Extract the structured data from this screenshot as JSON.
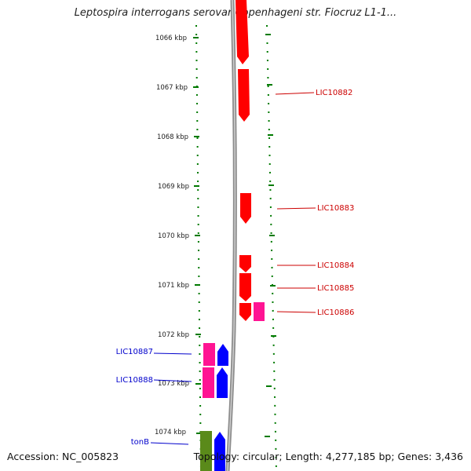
{
  "title": "Leptospira interrogans serovar Copenhageni str. Fiocruz L1-1...",
  "footer": {
    "accession": "Accession: NC_005823",
    "summary": "Topology: circular; Length: 4,277,185 bp; Genes: 3,436"
  },
  "colors": {
    "red": "#ff0000",
    "pink": "#ff1493",
    "blue": "#0000ff",
    "olive": "#5a8a1a",
    "backbone": "#8c8c8c",
    "scale": "#007a00",
    "red_label": "#cc0000",
    "blue_label": "#0000cc"
  },
  "scale_labels": [
    "1066 kbp",
    "1067 kbp",
    "1068 kbp",
    "1069 kbp",
    "1070 kbp",
    "1071 kbp",
    "1072 kbp",
    "1073 kbp",
    "1074 kbp"
  ],
  "labels_right": [
    "LIC10882",
    "LIC10883",
    "LIC10884",
    "LIC10885",
    "LIC10886"
  ],
  "labels_left": [
    "LIC10887",
    "LIC10888",
    "tonB"
  ]
}
